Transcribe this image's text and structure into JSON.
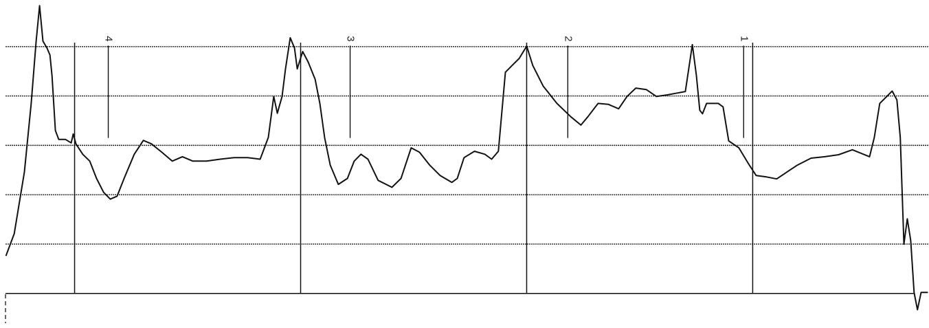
{
  "chart_data": {
    "type": "line",
    "color": "#111111",
    "xlim": [
      -0.33,
      3.78
    ],
    "ylim": [
      -0.7,
      6.0
    ],
    "xticks": [
      0,
      1,
      2,
      3
    ],
    "yticks": [
      0,
      1,
      2,
      3,
      4,
      5
    ],
    "grid": true,
    "markers": [
      {
        "label": "4",
        "x": 0.149,
        "span": [
          3.15,
          5.02
        ]
      },
      {
        "label": "3",
        "x": 1.219,
        "span": [
          3.15,
          5.02
        ]
      },
      {
        "label": "2",
        "x": 2.182,
        "span": [
          3.15,
          5.02
        ]
      },
      {
        "label": "1",
        "x": 2.96,
        "span": [
          3.15,
          5.02
        ]
      }
    ],
    "x": [
      -0.304,
      -0.267,
      -0.222,
      -0.192,
      -0.17,
      -0.155,
      -0.14,
      -0.122,
      -0.109,
      -0.1,
      -0.085,
      -0.07,
      -0.04,
      -0.015,
      -0.006,
      0.006,
      0.036,
      0.067,
      0.097,
      0.128,
      0.158,
      0.188,
      0.219,
      0.264,
      0.304,
      0.34,
      0.386,
      0.432,
      0.477,
      0.523,
      0.584,
      0.644,
      0.705,
      0.766,
      0.821,
      0.857,
      0.881,
      0.897,
      0.918,
      0.933,
      0.954,
      0.973,
      0.985,
      1.009,
      1.033,
      1.064,
      1.085,
      1.106,
      1.131,
      1.167,
      1.207,
      1.237,
      1.267,
      1.298,
      1.343,
      1.404,
      1.444,
      1.489,
      1.526,
      1.571,
      1.617,
      1.669,
      1.693,
      1.723,
      1.769,
      1.815,
      1.845,
      1.875,
      1.906,
      1.936,
      1.967,
      2.0,
      2.027,
      2.073,
      2.134,
      2.195,
      2.24,
      2.271,
      2.316,
      2.362,
      2.407,
      2.444,
      2.483,
      2.529,
      2.574,
      2.62,
      2.666,
      2.702,
      2.733,
      2.751,
      2.766,
      2.778,
      2.796,
      2.848,
      2.869,
      2.894,
      2.939,
      2.985,
      3.015,
      3.061,
      3.106,
      3.152,
      3.198,
      3.258,
      3.319,
      3.38,
      3.441,
      3.517,
      3.538,
      3.562,
      3.593,
      3.617,
      3.638,
      3.653,
      3.669,
      3.684,
      3.699,
      3.714,
      3.729,
      3.745,
      3.775
    ],
    "values": [
      0.76,
      1.21,
      2.46,
      3.85,
      5.11,
      5.83,
      5.11,
      4.97,
      4.83,
      4.41,
      3.3,
      3.12,
      3.12,
      3.05,
      3.23,
      3.03,
      2.82,
      2.68,
      2.33,
      2.05,
      1.91,
      1.97,
      2.33,
      2.82,
      3.1,
      3.03,
      2.86,
      2.68,
      2.77,
      2.68,
      2.68,
      2.72,
      2.75,
      2.75,
      2.72,
      3.16,
      3.99,
      3.65,
      3.99,
      4.55,
      5.18,
      4.97,
      4.55,
      4.9,
      4.69,
      4.34,
      3.85,
      3.16,
      2.6,
      2.21,
      2.33,
      2.68,
      2.82,
      2.72,
      2.29,
      2.15,
      2.33,
      2.95,
      2.86,
      2.6,
      2.39,
      2.25,
      2.33,
      2.75,
      2.88,
      2.82,
      2.72,
      2.88,
      4.48,
      4.62,
      4.76,
      5.01,
      4.62,
      4.2,
      3.85,
      3.58,
      3.41,
      3.58,
      3.85,
      3.83,
      3.74,
      3.99,
      4.16,
      4.13,
      3.99,
      4.02,
      4.06,
      4.09,
      5.04,
      4.41,
      3.71,
      3.64,
      3.85,
      3.85,
      3.78,
      3.09,
      2.95,
      2.6,
      2.39,
      2.36,
      2.32,
      2.46,
      2.6,
      2.74,
      2.77,
      2.81,
      2.91,
      2.77,
      3.16,
      3.85,
      3.99,
      4.1,
      3.92,
      3.16,
      1.0,
      1.51,
      1.07,
      0.02,
      -0.33,
      0.02,
      0.02
    ]
  }
}
